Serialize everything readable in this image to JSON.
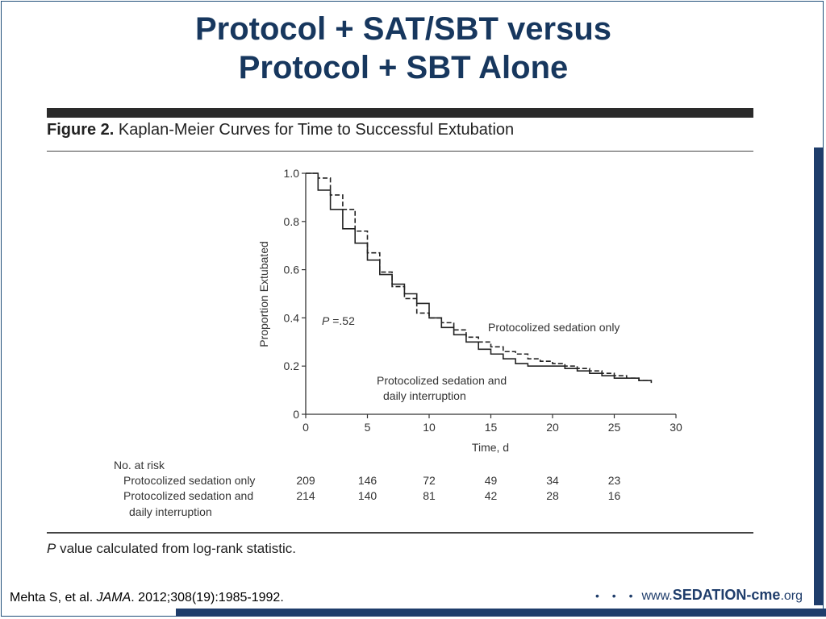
{
  "slide": {
    "title_line1": "Protocol + SAT/SBT versus",
    "title_line2": "Protocol + SBT Alone",
    "citation_authors": "Mehta S, et al. ",
    "citation_journal": "JAMA",
    "citation_rest": ". 2012;308(19):1985-1992.",
    "brand_www": "www.",
    "brand_name": "SEDATION-cme",
    "brand_tld": ".org",
    "brand_dots": "• • •",
    "accent_color": "#1f3d6b",
    "title_color": "#17375e"
  },
  "figure": {
    "label": "Figure 2.",
    "caption": " Kaplan-Meier Curves for Time to Successful Extubation",
    "footnote_p": "P",
    "footnote_rest": " value calculated from log-rank statistic."
  },
  "chart_data": {
    "type": "line",
    "step": true,
    "xlabel": "Time, d",
    "ylabel": "Proportion Extubated",
    "xlim": [
      0,
      30
    ],
    "ylim": [
      0,
      1.0
    ],
    "x_ticks": [
      0,
      5,
      10,
      15,
      20,
      25,
      30
    ],
    "y_ticks": [
      "0",
      "0.2",
      "0.4",
      "0.6",
      "0.8",
      "1.0"
    ],
    "annotation_p_label": "P",
    "annotation_p_value": "=.52",
    "series": [
      {
        "name": "Protocolized sedation only",
        "style": "dashed",
        "x": [
          0,
          1,
          2,
          3,
          4,
          5,
          6,
          7,
          8,
          9,
          10,
          11,
          12,
          13,
          14,
          15,
          16,
          17,
          18,
          19,
          20,
          21,
          22,
          23,
          24,
          25,
          26,
          27,
          28
        ],
        "y": [
          1.0,
          0.98,
          0.91,
          0.85,
          0.76,
          0.67,
          0.59,
          0.53,
          0.48,
          0.42,
          0.4,
          0.38,
          0.35,
          0.32,
          0.3,
          0.28,
          0.26,
          0.25,
          0.23,
          0.22,
          0.21,
          0.2,
          0.19,
          0.18,
          0.17,
          0.16,
          0.15,
          0.14,
          0.14
        ]
      },
      {
        "name": "Protocolized sedation and daily interruption",
        "name_line1": "Protocolized sedation and",
        "name_line2": "daily interruption",
        "style": "solid",
        "x": [
          0,
          1,
          2,
          3,
          4,
          5,
          6,
          7,
          8,
          9,
          10,
          11,
          12,
          13,
          14,
          15,
          16,
          17,
          18,
          19,
          20,
          21,
          22,
          23,
          24,
          25,
          26,
          27,
          28
        ],
        "y": [
          1.0,
          0.93,
          0.85,
          0.77,
          0.71,
          0.64,
          0.58,
          0.54,
          0.5,
          0.46,
          0.4,
          0.36,
          0.33,
          0.3,
          0.27,
          0.25,
          0.23,
          0.21,
          0.2,
          0.2,
          0.2,
          0.19,
          0.18,
          0.17,
          0.16,
          0.15,
          0.15,
          0.14,
          0.13
        ]
      }
    ],
    "at_risk": {
      "header": "No. at risk",
      "times": [
        0,
        5,
        10,
        15,
        20,
        25
      ],
      "rows": [
        {
          "label": "Protocolized sedation only",
          "values": [
            "209",
            "146",
            "72",
            "49",
            "34",
            "23"
          ]
        },
        {
          "label": "Protocolized sedation and",
          "label_line2": "daily interruption",
          "values": [
            "214",
            "140",
            "81",
            "42",
            "28",
            "16"
          ]
        }
      ]
    }
  }
}
